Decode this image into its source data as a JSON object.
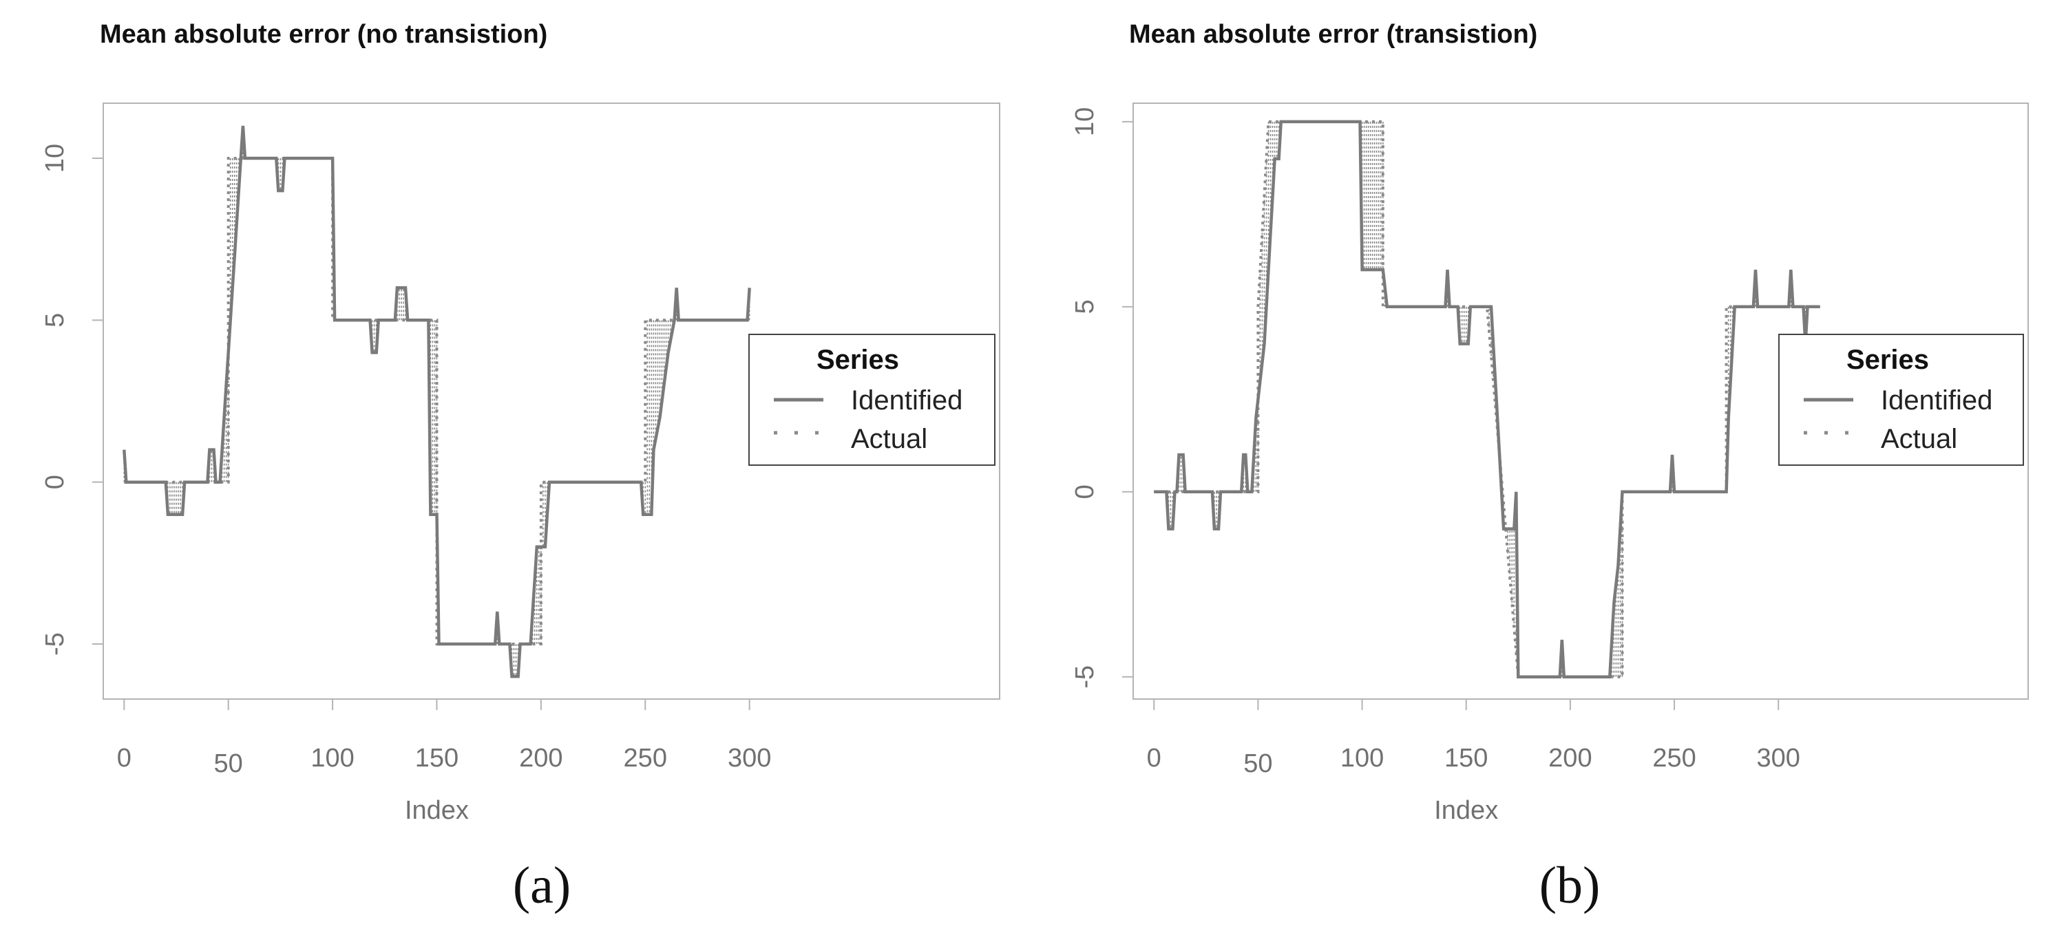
{
  "chart_data": [
    {
      "type": "line",
      "title": "Mean absolute error (no transistion)",
      "xlabel": "Index",
      "ylabel": "",
      "caption": "(a)",
      "xlim": [
        -10,
        420
      ],
      "ylim": [
        -6.7,
        11.7
      ],
      "xticks": [
        0,
        50,
        100,
        150,
        200,
        250,
        300
      ],
      "yticks": [
        -5,
        0,
        5,
        10
      ],
      "legend": {
        "title": "Series",
        "entries": [
          "Identified",
          "Actual"
        ],
        "position": "right"
      },
      "series": [
        {
          "name": "Identified",
          "style": "solid",
          "points": [
            [
              0,
              1
            ],
            [
              1,
              0
            ],
            [
              20,
              0
            ],
            [
              21,
              -1
            ],
            [
              28,
              -1
            ],
            [
              29,
              0
            ],
            [
              40,
              0
            ],
            [
              41,
              1
            ],
            [
              43,
              1
            ],
            [
              44,
              0
            ],
            [
              46,
              0
            ],
            [
              47,
              1
            ],
            [
              48,
              2
            ],
            [
              49,
              3
            ],
            [
              50,
              4
            ],
            [
              51,
              5
            ],
            [
              52,
              6
            ],
            [
              53,
              7
            ],
            [
              54,
              8
            ],
            [
              55,
              9
            ],
            [
              56,
              10
            ],
            [
              57,
              11
            ],
            [
              58,
              10
            ],
            [
              73,
              10
            ],
            [
              74,
              9
            ],
            [
              76,
              9
            ],
            [
              77,
              10
            ],
            [
              100,
              10
            ],
            [
              101,
              5
            ],
            [
              118,
              5
            ],
            [
              119,
              4
            ],
            [
              121,
              4
            ],
            [
              122,
              5
            ],
            [
              130,
              5
            ],
            [
              131,
              6
            ],
            [
              135,
              6
            ],
            [
              136,
              5
            ],
            [
              146,
              5
            ],
            [
              147,
              -1
            ],
            [
              150,
              -1
            ],
            [
              151,
              -5
            ],
            [
              178,
              -5
            ],
            [
              179,
              -4
            ],
            [
              180,
              -5
            ],
            [
              185,
              -5
            ],
            [
              186,
              -6
            ],
            [
              189,
              -6
            ],
            [
              190,
              -5
            ],
            [
              195,
              -5
            ],
            [
              196,
              -4
            ],
            [
              197,
              -3
            ],
            [
              198,
              -2
            ],
            [
              202,
              -2
            ],
            [
              203,
              -1
            ],
            [
              204,
              0
            ],
            [
              248,
              0
            ],
            [
              249,
              -1
            ],
            [
              253,
              -1
            ],
            [
              254,
              1
            ],
            [
              257,
              2
            ],
            [
              259,
              3
            ],
            [
              261,
              4
            ],
            [
              264,
              5
            ],
            [
              265,
              6
            ],
            [
              266,
              5
            ],
            [
              299,
              5
            ],
            [
              300,
              6
            ]
          ]
        },
        {
          "name": "Actual",
          "style": "dotted",
          "points": [
            [
              0,
              0
            ],
            [
              46,
              0
            ],
            [
              48,
              0
            ],
            [
              50,
              0
            ],
            [
              50,
              10
            ],
            [
              100,
              10
            ],
            [
              100,
              5
            ],
            [
              150,
              5
            ],
            [
              150,
              -5
            ],
            [
              200,
              -5
            ],
            [
              200,
              0
            ],
            [
              250,
              0
            ],
            [
              250,
              5
            ],
            [
              300,
              5
            ]
          ]
        }
      ]
    },
    {
      "type": "line",
      "title": "Mean absolute error (transistion)",
      "xlabel": "Index",
      "ylabel": "",
      "caption": "(b)",
      "xlim": [
        -10,
        420
      ],
      "ylim": [
        -5.6,
        10.5
      ],
      "xticks": [
        0,
        50,
        100,
        150,
        200,
        250,
        300
      ],
      "yticks": [
        -5,
        0,
        5,
        10
      ],
      "legend": {
        "title": "Series",
        "entries": [
          "Identified",
          "Actual"
        ],
        "position": "right"
      },
      "series": [
        {
          "name": "Identified",
          "style": "solid",
          "points": [
            [
              0,
              0
            ],
            [
              6,
              0
            ],
            [
              7,
              -1
            ],
            [
              9,
              -1
            ],
            [
              10,
              0
            ],
            [
              11,
              0
            ],
            [
              12,
              1
            ],
            [
              14,
              1
            ],
            [
              15,
              0
            ],
            [
              28,
              0
            ],
            [
              29,
              -1
            ],
            [
              31,
              -1
            ],
            [
              32,
              0
            ],
            [
              42,
              0
            ],
            [
              43,
              1
            ],
            [
              44,
              1
            ],
            [
              45,
              0
            ],
            [
              47,
              0
            ],
            [
              48,
              1
            ],
            [
              49,
              2
            ],
            [
              51,
              3
            ],
            [
              53,
              4
            ],
            [
              55,
              6
            ],
            [
              56,
              7
            ],
            [
              57,
              8
            ],
            [
              58,
              9
            ],
            [
              60,
              9
            ],
            [
              61,
              10
            ],
            [
              64,
              10
            ],
            [
              99,
              10
            ],
            [
              100,
              6
            ],
            [
              110,
              6
            ],
            [
              112,
              5
            ],
            [
              140,
              5
            ],
            [
              141,
              6
            ],
            [
              142,
              5
            ],
            [
              146,
              5
            ],
            [
              147,
              4
            ],
            [
              151,
              4
            ],
            [
              152,
              5
            ],
            [
              162,
              5
            ],
            [
              163,
              4
            ],
            [
              165,
              2
            ],
            [
              166,
              1
            ],
            [
              167,
              0
            ],
            [
              168,
              -1
            ],
            [
              173,
              -1
            ],
            [
              174,
              0
            ],
            [
              175,
              -5
            ],
            [
              195,
              -5
            ],
            [
              196,
              -4
            ],
            [
              197,
              -5
            ],
            [
              219,
              -5
            ],
            [
              220,
              -4
            ],
            [
              221,
              -3
            ],
            [
              223,
              -2
            ],
            [
              225,
              0
            ],
            [
              248,
              0
            ],
            [
              249,
              1
            ],
            [
              250,
              0
            ],
            [
              275,
              0
            ],
            [
              276,
              2
            ],
            [
              278,
              4
            ],
            [
              279,
              5
            ],
            [
              288,
              5
            ],
            [
              289,
              6
            ],
            [
              290,
              5
            ],
            [
              305,
              5
            ],
            [
              306,
              6
            ],
            [
              307,
              5
            ],
            [
              312,
              5
            ],
            [
              313,
              4
            ],
            [
              314,
              5
            ],
            [
              320,
              5
            ]
          ]
        },
        {
          "name": "Actual",
          "style": "dotted",
          "points": [
            [
              0,
              0
            ],
            [
              50,
              0
            ],
            [
              50,
              5
            ],
            [
              55,
              10
            ],
            [
              100,
              10
            ],
            [
              100,
              10
            ],
            [
              110,
              10
            ],
            [
              110,
              5
            ],
            [
              160,
              5
            ],
            [
              160,
              5
            ],
            [
              175,
              -5
            ],
            [
              225,
              -5
            ],
            [
              225,
              0
            ],
            [
              275,
              0
            ],
            [
              275,
              5
            ],
            [
              320,
              5
            ]
          ]
        }
      ]
    }
  ]
}
